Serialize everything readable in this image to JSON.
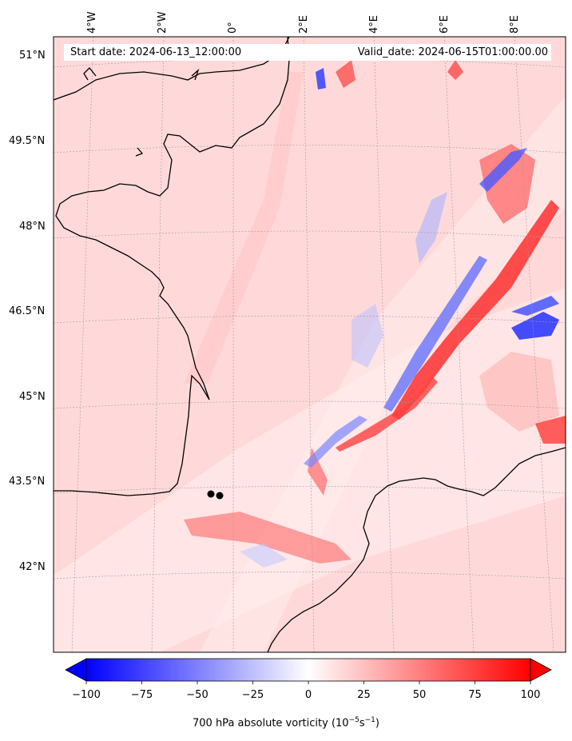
{
  "header": {
    "start_label": "Start date: 2024-06-13_12:00:00",
    "valid_label": "Valid_date: 2024-06-15T01:00:00.00"
  },
  "lat_labels": [
    "51°N",
    "49.5°N",
    "48°N",
    "46.5°N",
    "45°N",
    "43.5°N",
    "42°N"
  ],
  "lon_labels": [
    "4°W",
    "2°W",
    "0°",
    "2°E",
    "4°E",
    "6°E",
    "8°E"
  ],
  "colorbar": {
    "title": "700 hPa absolute vorticity (10",
    "title_exp1": "−5",
    "title_mid": "s",
    "title_exp2": "−1",
    "title_end": ")",
    "ticks": [
      "−100",
      "−75",
      "−50",
      "−25",
      "0",
      "25",
      "50",
      "75",
      "100"
    ],
    "min_color": "#0000ff",
    "mid_color": "#ffffff",
    "max_color": "#ff0000"
  },
  "colors": {
    "background_field": "#ffd6d6",
    "coastline": "#000000"
  }
}
